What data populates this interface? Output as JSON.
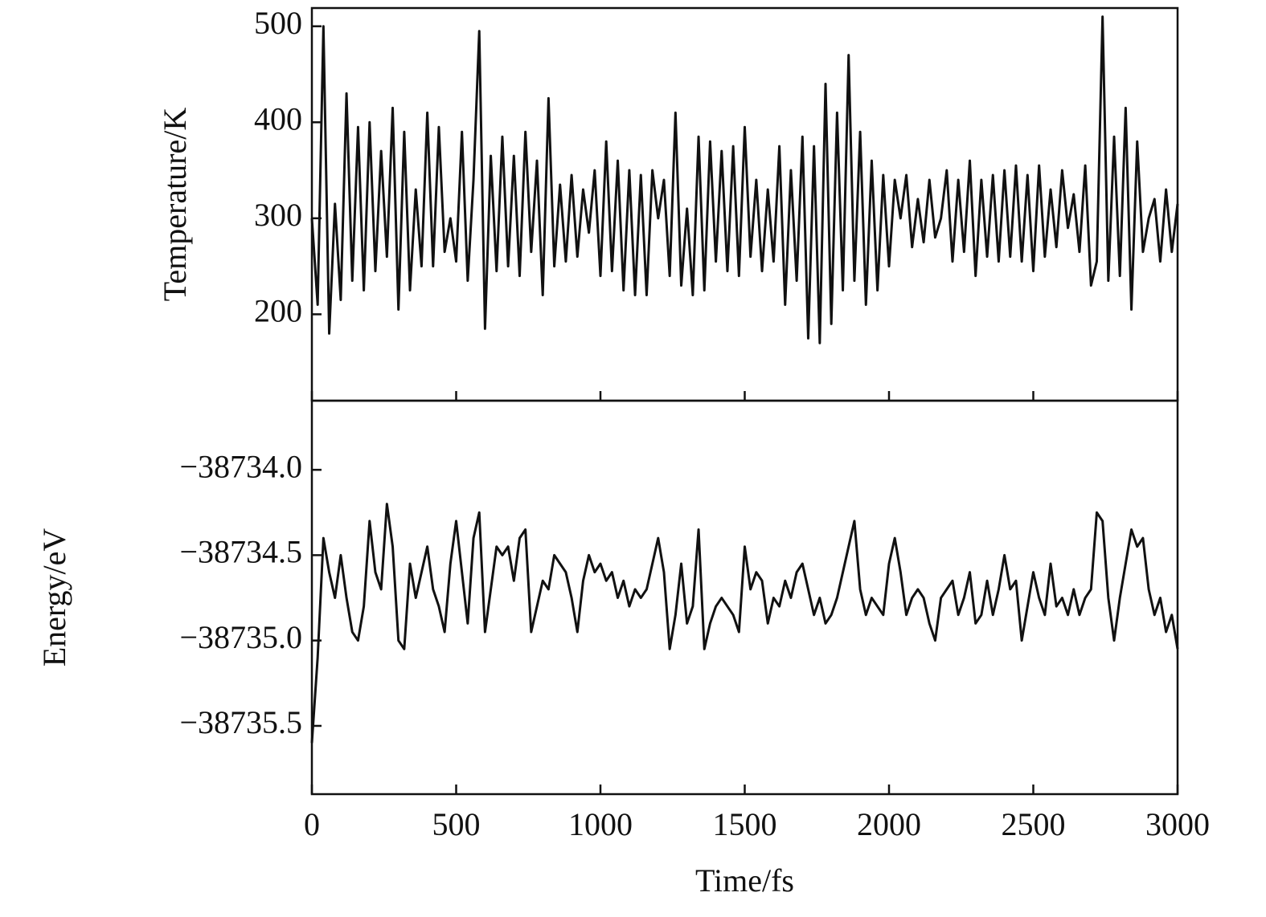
{
  "chart_data": [
    {
      "type": "line",
      "y_label": "Temperature/K",
      "x": [
        0,
        20,
        40,
        60,
        80,
        100,
        120,
        140,
        160,
        180,
        200,
        220,
        240,
        260,
        280,
        300,
        320,
        340,
        360,
        380,
        400,
        420,
        440,
        460,
        480,
        500,
        520,
        540,
        560,
        580,
        600,
        620,
        640,
        660,
        680,
        700,
        720,
        740,
        760,
        780,
        800,
        820,
        840,
        860,
        880,
        900,
        920,
        940,
        960,
        980,
        1000,
        1020,
        1040,
        1060,
        1080,
        1100,
        1120,
        1140,
        1160,
        1180,
        1200,
        1220,
        1240,
        1260,
        1280,
        1300,
        1320,
        1340,
        1360,
        1380,
        1400,
        1420,
        1440,
        1460,
        1480,
        1500,
        1520,
        1540,
        1560,
        1580,
        1600,
        1620,
        1640,
        1660,
        1680,
        1700,
        1720,
        1740,
        1760,
        1780,
        1800,
        1820,
        1840,
        1860,
        1880,
        1900,
        1920,
        1940,
        1960,
        1980,
        2000,
        2020,
        2040,
        2060,
        2080,
        2100,
        2120,
        2140,
        2160,
        2180,
        2200,
        2220,
        2240,
        2260,
        2280,
        2300,
        2320,
        2340,
        2360,
        2380,
        2400,
        2420,
        2440,
        2460,
        2480,
        2500,
        2520,
        2540,
        2560,
        2580,
        2600,
        2620,
        2640,
        2660,
        2680,
        2700,
        2720,
        2740,
        2760,
        2780,
        2800,
        2820,
        2840,
        2860,
        2880,
        2900,
        2920,
        2940,
        2960,
        2980,
        3000
      ],
      "series": [
        {
          "color": "#111111",
          "values": [
            300,
            210,
            500,
            180,
            315,
            215,
            430,
            235,
            395,
            225,
            400,
            245,
            370,
            260,
            415,
            205,
            390,
            225,
            330,
            250,
            410,
            250,
            395,
            265,
            300,
            255,
            390,
            235,
            340,
            495,
            185,
            365,
            245,
            385,
            250,
            365,
            240,
            390,
            265,
            360,
            220,
            425,
            250,
            335,
            255,
            345,
            260,
            330,
            285,
            350,
            240,
            380,
            245,
            360,
            225,
            350,
            220,
            345,
            220,
            350,
            300,
            340,
            240,
            410,
            230,
            310,
            220,
            385,
            225,
            380,
            255,
            370,
            245,
            375,
            240,
            395,
            260,
            340,
            245,
            330,
            255,
            375,
            210,
            350,
            235,
            385,
            175,
            375,
            170,
            440,
            190,
            410,
            225,
            470,
            235,
            390,
            210,
            360,
            225,
            345,
            250,
            340,
            300,
            345,
            270,
            320,
            275,
            340,
            280,
            300,
            350,
            255,
            340,
            265,
            360,
            240,
            340,
            260,
            345,
            255,
            350,
            260,
            355,
            255,
            345,
            245,
            355,
            260,
            330,
            270,
            350,
            290,
            325,
            265,
            355,
            230,
            255,
            510,
            235,
            385,
            240,
            415,
            205,
            380,
            265,
            300,
            320,
            255,
            330,
            265,
            315
          ]
        }
      ],
      "xlim": [
        0,
        3000
      ],
      "xticks": [
        0,
        500,
        1000,
        1500,
        2000,
        2500,
        3000
      ],
      "ylim": [
        110,
        519
      ],
      "yticks": [
        200,
        300,
        400,
        500
      ]
    },
    {
      "type": "line",
      "x_label": "Time/fs",
      "y_label": "Energy/eV",
      "x": [
        0,
        20,
        40,
        60,
        80,
        100,
        120,
        140,
        160,
        180,
        200,
        220,
        240,
        260,
        280,
        300,
        320,
        340,
        360,
        380,
        400,
        420,
        440,
        460,
        480,
        500,
        520,
        540,
        560,
        580,
        600,
        620,
        640,
        660,
        680,
        700,
        720,
        740,
        760,
        780,
        800,
        820,
        840,
        860,
        880,
        900,
        920,
        940,
        960,
        980,
        1000,
        1020,
        1040,
        1060,
        1080,
        1100,
        1120,
        1140,
        1160,
        1180,
        1200,
        1220,
        1240,
        1260,
        1280,
        1300,
        1320,
        1340,
        1360,
        1380,
        1400,
        1420,
        1440,
        1460,
        1480,
        1500,
        1520,
        1540,
        1560,
        1580,
        1600,
        1620,
        1640,
        1660,
        1680,
        1700,
        1720,
        1740,
        1760,
        1780,
        1800,
        1820,
        1840,
        1860,
        1880,
        1900,
        1920,
        1940,
        1960,
        1980,
        2000,
        2020,
        2040,
        2060,
        2080,
        2100,
        2120,
        2140,
        2160,
        2180,
        2200,
        2220,
        2240,
        2260,
        2280,
        2300,
        2320,
        2340,
        2360,
        2380,
        2400,
        2420,
        2440,
        2460,
        2480,
        2500,
        2520,
        2540,
        2560,
        2580,
        2600,
        2620,
        2640,
        2660,
        2680,
        2700,
        2720,
        2740,
        2760,
        2780,
        2800,
        2820,
        2840,
        2860,
        2880,
        2900,
        2920,
        2940,
        2960,
        2980,
        3000
      ],
      "series": [
        {
          "color": "#111111",
          "values": [
            -38735.6,
            -38735.1,
            -38734.4,
            -38734.6,
            -38734.75,
            -38734.5,
            -38734.75,
            -38734.95,
            -38735.0,
            -38734.8,
            -38734.3,
            -38734.6,
            -38734.7,
            -38734.2,
            -38734.45,
            -38735.0,
            -38735.05,
            -38734.55,
            -38734.75,
            -38734.6,
            -38734.45,
            -38734.7,
            -38734.8,
            -38734.95,
            -38734.55,
            -38734.3,
            -38734.6,
            -38734.9,
            -38734.4,
            -38734.25,
            -38734.95,
            -38734.7,
            -38734.45,
            -38734.5,
            -38734.45,
            -38734.65,
            -38734.4,
            -38734.35,
            -38734.95,
            -38734.8,
            -38734.65,
            -38734.7,
            -38734.5,
            -38734.55,
            -38734.6,
            -38734.75,
            -38734.95,
            -38734.65,
            -38734.5,
            -38734.6,
            -38734.55,
            -38734.65,
            -38734.6,
            -38734.75,
            -38734.65,
            -38734.8,
            -38734.7,
            -38734.75,
            -38734.7,
            -38734.55,
            -38734.4,
            -38734.6,
            -38735.05,
            -38734.85,
            -38734.55,
            -38734.9,
            -38734.8,
            -38734.35,
            -38735.05,
            -38734.9,
            -38734.8,
            -38734.75,
            -38734.8,
            -38734.85,
            -38734.95,
            -38734.45,
            -38734.7,
            -38734.6,
            -38734.65,
            -38734.9,
            -38734.75,
            -38734.8,
            -38734.65,
            -38734.75,
            -38734.6,
            -38734.55,
            -38734.7,
            -38734.85,
            -38734.75,
            -38734.9,
            -38734.85,
            -38734.75,
            -38734.6,
            -38734.45,
            -38734.3,
            -38734.7,
            -38734.85,
            -38734.75,
            -38734.8,
            -38734.85,
            -38734.55,
            -38734.4,
            -38734.6,
            -38734.85,
            -38734.75,
            -38734.7,
            -38734.75,
            -38734.9,
            -38735.0,
            -38734.75,
            -38734.7,
            -38734.65,
            -38734.85,
            -38734.75,
            -38734.6,
            -38734.9,
            -38734.85,
            -38734.65,
            -38734.85,
            -38734.7,
            -38734.5,
            -38734.7,
            -38734.65,
            -38735.0,
            -38734.8,
            -38734.6,
            -38734.75,
            -38734.85,
            -38734.55,
            -38734.8,
            -38734.75,
            -38734.85,
            -38734.7,
            -38734.85,
            -38734.75,
            -38734.7,
            -38734.25,
            -38734.3,
            -38734.75,
            -38735.0,
            -38734.75,
            -38734.55,
            -38734.35,
            -38734.45,
            -38734.4,
            -38734.7,
            -38734.85,
            -38734.75,
            -38734.95,
            -38734.85,
            -38735.05
          ]
        }
      ],
      "xlim": [
        0,
        3000
      ],
      "xticks": [
        0,
        500,
        1000,
        1500,
        2000,
        2500,
        3000
      ],
      "ylim": [
        -38735.9,
        -38733.595
      ],
      "yticks": [
        {
          "value": -38734.0,
          "label": "−38734.0"
        },
        {
          "value": -38734.5,
          "label": "−38734.5"
        },
        {
          "value": -38735.0,
          "label": "−38735.0"
        },
        {
          "value": -38735.5,
          "label": "−38735.5"
        }
      ]
    }
  ]
}
